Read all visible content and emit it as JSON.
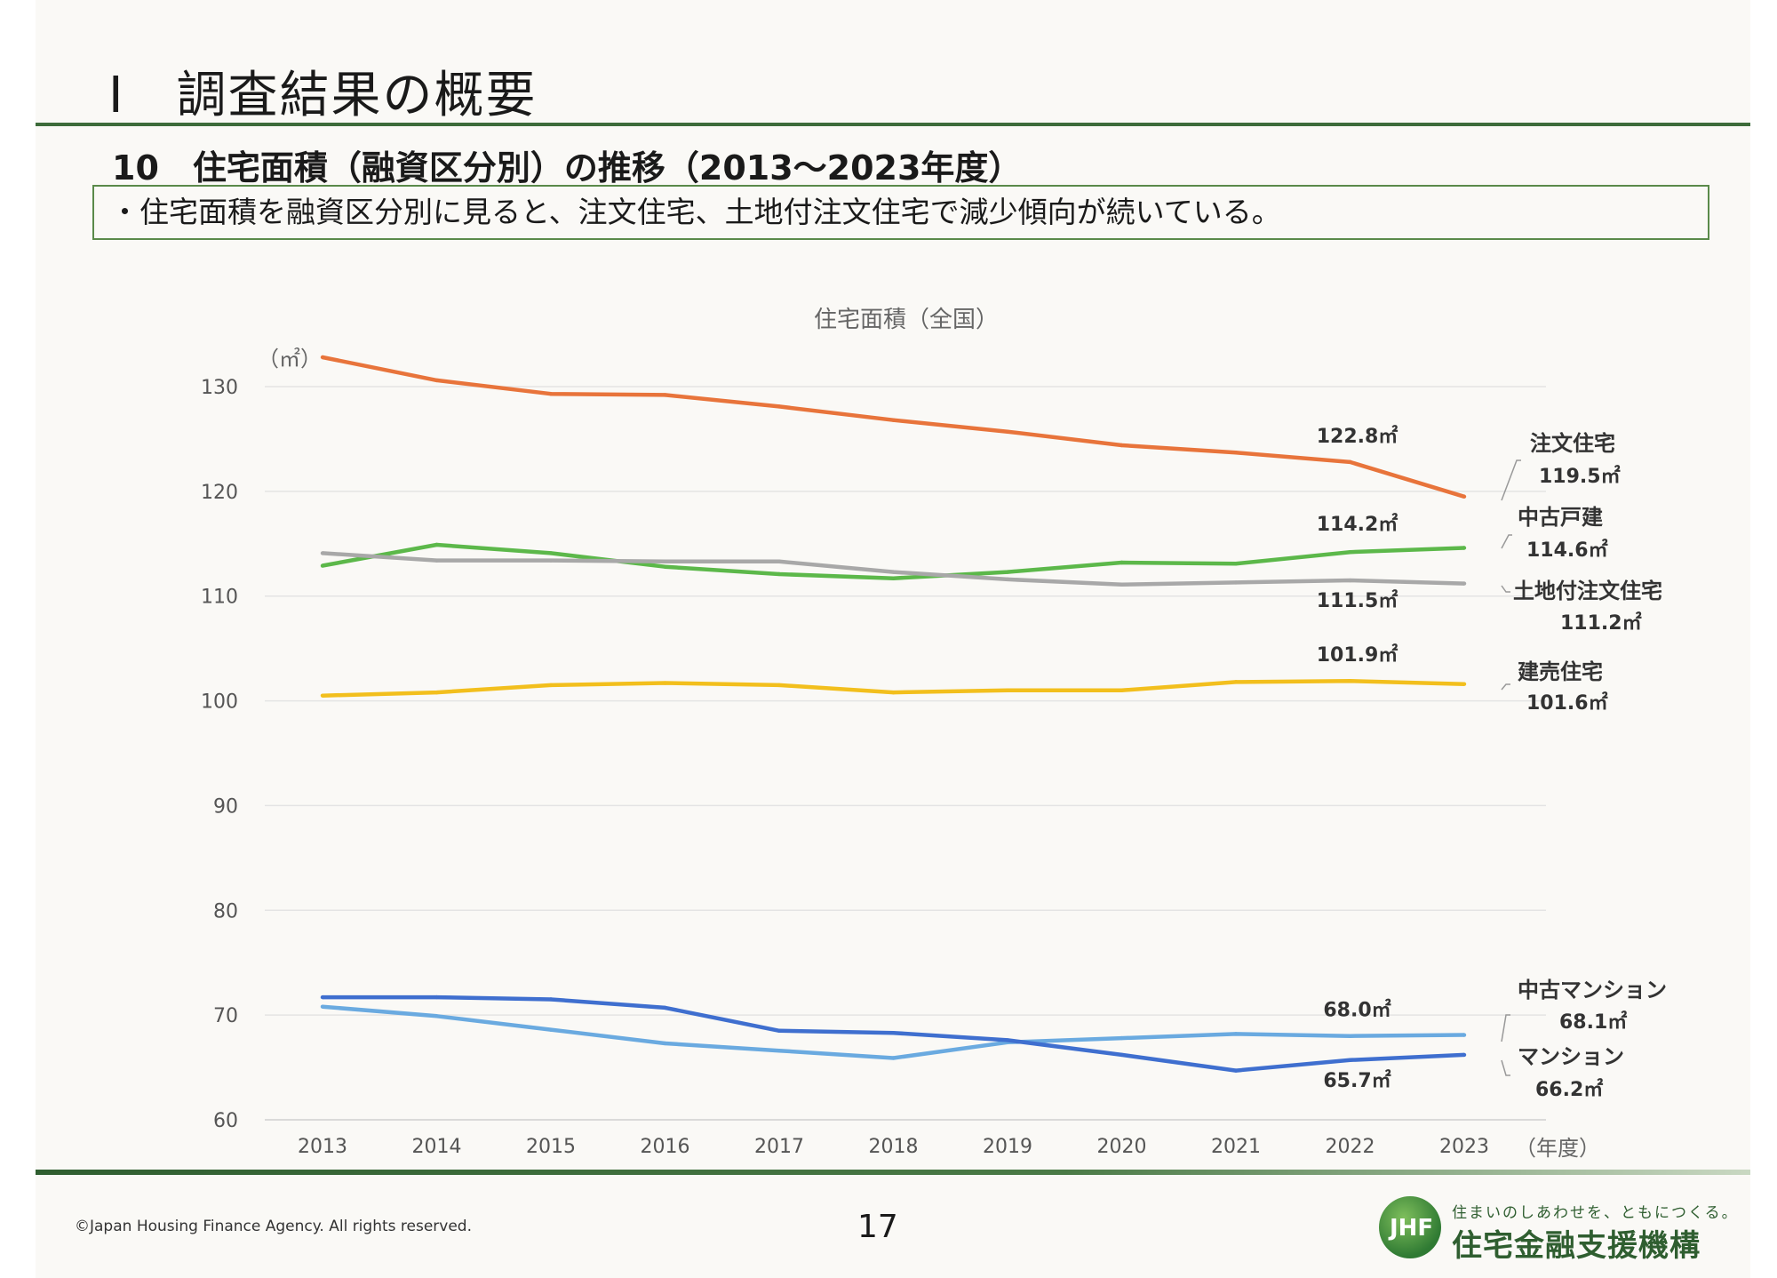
{
  "header": {
    "title": "Ⅰ　調査結果の概要",
    "subtitle": "10　住宅面積（融資区分別）の推移（2013～2023年度）",
    "summary": "・住宅面積を融資区分別に見ると、注文住宅、土地付注文住宅で減少傾向が続いている。"
  },
  "chart_data": {
    "type": "line",
    "title": "住宅面積（全国）",
    "ylabel": "（㎡）",
    "xlabel": "（年度）",
    "ylim": [
      60,
      130
    ],
    "yticks": [
      60,
      70,
      80,
      90,
      100,
      110,
      120,
      130
    ],
    "grid": true,
    "categories": [
      "2013",
      "2014",
      "2015",
      "2016",
      "2017",
      "2018",
      "2019",
      "2020",
      "2021",
      "2022",
      "2023"
    ],
    "series": [
      {
        "name": "注文住宅",
        "color": "#e8743b",
        "values": [
          132.8,
          130.6,
          129.3,
          129.2,
          128.1,
          126.8,
          125.7,
          124.4,
          123.7,
          122.8,
          119.5
        ],
        "label_2022": "122.8㎡",
        "end_value_label": "119.5㎡"
      },
      {
        "name": "中古戸建",
        "color": "#5cb84a",
        "values": [
          112.9,
          114.9,
          114.1,
          112.8,
          112.1,
          111.7,
          112.3,
          113.2,
          113.1,
          114.2,
          114.6
        ],
        "label_2022": "114.2㎡",
        "end_value_label": "114.6㎡"
      },
      {
        "name": "土地付注文住宅",
        "color": "#a8a8a8",
        "values": [
          114.1,
          113.4,
          113.4,
          113.3,
          113.3,
          112.3,
          111.6,
          111.1,
          111.3,
          111.5,
          111.2
        ],
        "label_2022": "111.5㎡",
        "end_value_label": "111.2㎡"
      },
      {
        "name": "建売住宅",
        "color": "#f2bf1d",
        "values": [
          100.5,
          100.8,
          101.5,
          101.7,
          101.5,
          100.8,
          101.0,
          101.0,
          101.8,
          101.9,
          101.6
        ],
        "label_2022": "101.9㎡",
        "end_value_label": "101.6㎡"
      },
      {
        "name": "中古マンション",
        "color": "#6aaae0",
        "values": [
          70.8,
          69.9,
          68.6,
          67.3,
          66.6,
          65.9,
          67.4,
          67.8,
          68.2,
          68.0,
          68.1
        ],
        "label_2022": "68.0㎡",
        "end_value_label": "68.1㎡"
      },
      {
        "name": "マンション",
        "color": "#3f6fcf",
        "values": [
          71.7,
          71.7,
          71.5,
          70.7,
          68.5,
          68.3,
          67.6,
          66.2,
          64.7,
          65.7,
          66.2
        ],
        "label_2022": "65.7㎡",
        "end_value_label": "66.2㎡"
      }
    ]
  },
  "footer": {
    "copyright": "©Japan Housing Finance Agency. All rights reserved.",
    "page": "17",
    "logo_mark": "JHF",
    "tagline": "住まいのしあわせを、ともにつくる。",
    "org": "住宅金融支援機構"
  }
}
